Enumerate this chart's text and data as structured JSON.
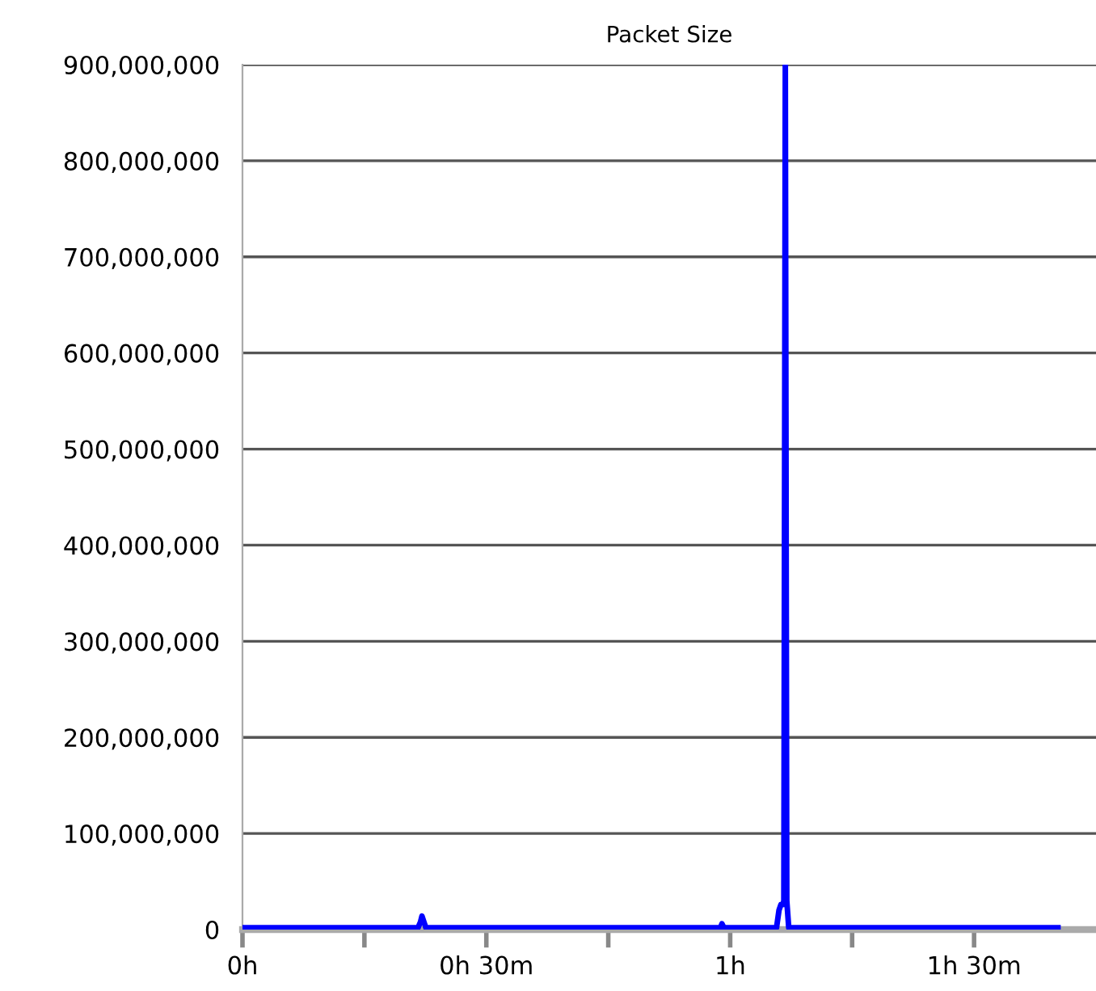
{
  "chart_data": {
    "type": "line",
    "title": "Packet Size",
    "x": [
      0,
      0.36,
      0.365,
      0.368,
      0.372,
      0.376,
      0.98,
      0.983,
      0.987,
      1.095,
      1.1,
      1.104,
      1.108,
      1.11,
      1.113,
      1.116,
      1.12,
      1.124,
      1.3,
      1.672
    ],
    "series": [
      {
        "color": "#0000ff",
        "values": [
          2000000,
          2000000,
          8000000,
          14000000,
          8000000,
          2000000,
          2000000,
          6000000,
          2000000,
          2000000,
          20000000,
          26000000,
          26000000,
          30000000,
          900000000,
          30000000,
          2000000,
          2000000,
          2000000,
          2000000
        ]
      }
    ],
    "xlim": [
      0,
      1.75
    ],
    "xticks": [
      {
        "value": 0,
        "label": "0h"
      },
      {
        "value": 0.25,
        "label": null
      },
      {
        "value": 0.5,
        "label": "0h 30m"
      },
      {
        "value": 0.75,
        "label": null
      },
      {
        "value": 1,
        "label": "1h"
      },
      {
        "value": 1.25,
        "label": null
      },
      {
        "value": 1.5,
        "label": "1h 30m"
      }
    ],
    "ylim": [
      0,
      900000000
    ],
    "yticks": [
      {
        "value": 0,
        "label": "0"
      },
      {
        "value": 100000000,
        "label": "100,000,000"
      },
      {
        "value": 200000000,
        "label": "200,000,000"
      },
      {
        "value": 300000000,
        "label": "300,000,000"
      },
      {
        "value": 400000000,
        "label": "400,000,000"
      },
      {
        "value": 500000000,
        "label": "500,000,000"
      },
      {
        "value": 600000000,
        "label": "600,000,000"
      },
      {
        "value": 700000000,
        "label": "700,000,000"
      },
      {
        "value": 800000000,
        "label": "800,000,000"
      },
      {
        "value": 900000000,
        "label": "900,000,000"
      }
    ],
    "grid": "y",
    "marker": "none",
    "line_style": "solid"
  }
}
